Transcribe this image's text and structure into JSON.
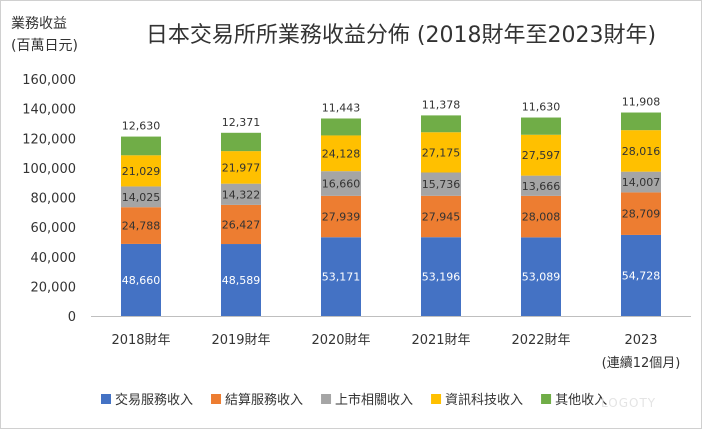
{
  "header": {
    "title": "日本交易所所業務收益分佈 (2018財年至2023財年)",
    "ylabel_line1": "業務收益",
    "ylabel_line2": "(百萬日元)"
  },
  "watermark": "LOGOTY",
  "chart_data": {
    "type": "bar",
    "stacked": true,
    "title": "日本交易所所業務收益分佈 (2018財年至2023財年)",
    "ylabel": "業務收益 (百萬日元)",
    "xlabel": "",
    "ylim": [
      0,
      160000
    ],
    "yticks": [
      0,
      20000,
      40000,
      60000,
      80000,
      100000,
      120000,
      140000,
      160000
    ],
    "ytick_labels": [
      "0",
      "20,000",
      "40,000",
      "60,000",
      "80,000",
      "100,000",
      "120,000",
      "140,000",
      "160,000"
    ],
    "categories": [
      "2018財年",
      "2019財年",
      "2020財年",
      "2021財年",
      "2022財年",
      "2023"
    ],
    "category_sublabels": [
      "",
      "",
      "",
      "",
      "",
      "(連續12個月)"
    ],
    "legend_position": "bottom",
    "series": [
      {
        "name": "交易服務收入",
        "color": "#4472C4",
        "label_color": "#ffffff",
        "values": [
          48660,
          48589,
          53171,
          53196,
          53089,
          54728
        ],
        "labels": [
          "48,660",
          "48,589",
          "53,171",
          "53,196",
          "53,089",
          "54,728"
        ]
      },
      {
        "name": "結算服務收入",
        "color": "#ED7D31",
        "label_color": "#333333",
        "values": [
          24788,
          26427,
          27939,
          27945,
          28008,
          28709
        ],
        "labels": [
          "24,788",
          "26,427",
          "27,939",
          "27,945",
          "28,008",
          "28,709"
        ]
      },
      {
        "name": "上市相關收入",
        "color": "#A5A5A5",
        "label_color": "#333333",
        "values": [
          14025,
          14322,
          16660,
          15736,
          13666,
          14007
        ],
        "labels": [
          "14,025",
          "14,322",
          "16,660",
          "15,736",
          "13,666",
          "14,007"
        ]
      },
      {
        "name": "資訊科技收入",
        "color": "#FFC000",
        "label_color": "#333333",
        "values": [
          21029,
          21977,
          24128,
          27175,
          27597,
          28016
        ],
        "labels": [
          "21,029",
          "21,977",
          "24,128",
          "27,175",
          "27,597",
          "28,016"
        ]
      },
      {
        "name": "其他收入",
        "color": "#70AD47",
        "label_color": "#333333",
        "values": [
          12630,
          12371,
          11443,
          11378,
          11630,
          11908
        ],
        "labels": [
          "12,630",
          "12,371",
          "11,443",
          "11,378",
          "11,630",
          "11,908"
        ]
      }
    ]
  }
}
